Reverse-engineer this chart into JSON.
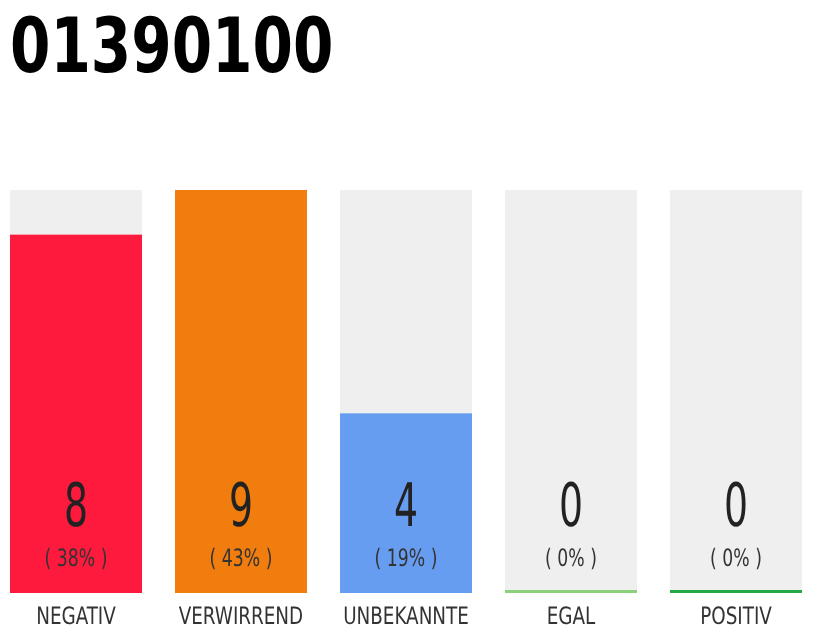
{
  "chart_data": {
    "type": "bar",
    "title": "01390100",
    "categories": [
      "NEGATIV",
      "VERWIRREND",
      "UNBEKANNTE",
      "EGAL",
      "POSITIV"
    ],
    "values": [
      8,
      9,
      4,
      0,
      0
    ],
    "colors": [
      "#fe1a3c",
      "#f07d0e",
      "#679df0",
      "#8bd07a",
      "#22a845"
    ],
    "value_labels": [
      "8",
      "9",
      "4",
      "0",
      "0"
    ],
    "annotations": [
      "( 38% )",
      "( 43% )",
      "( 19% )",
      "( 0% )",
      "( 0% )"
    ]
  }
}
